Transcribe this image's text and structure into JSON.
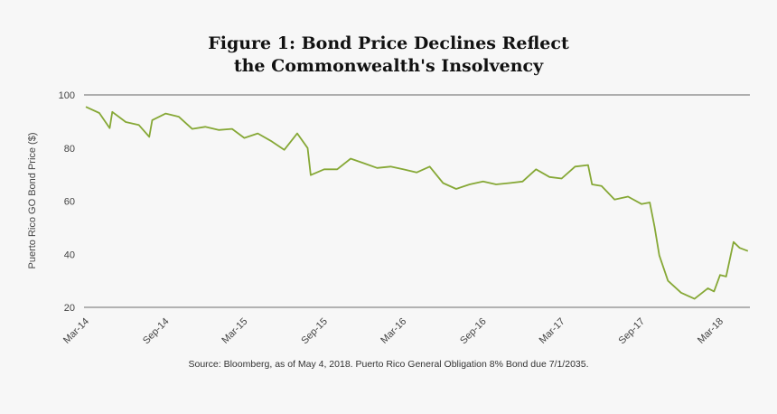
{
  "chart_data": {
    "type": "line",
    "title_lines": [
      "Figure 1: Bond Price Declines Reflect",
      "the Commonwealth's Insolvency"
    ],
    "xlabel": "",
    "ylabel": "Puerto Rico GO Bond Price ($)",
    "ylim": [
      20,
      100
    ],
    "yticks": [
      20,
      40,
      60,
      80,
      100
    ],
    "xticks": [
      {
        "label": "Mar-14",
        "date": "2014-03-01"
      },
      {
        "label": "Sep-14",
        "date": "2014-09-01"
      },
      {
        "label": "Mar-15",
        "date": "2015-03-01"
      },
      {
        "label": "Sep-15",
        "date": "2015-09-01"
      },
      {
        "label": "Mar-16",
        "date": "2016-03-01"
      },
      {
        "label": "Sep-16",
        "date": "2016-09-01"
      },
      {
        "label": "Mar-17",
        "date": "2017-03-01"
      },
      {
        "label": "Sep-17",
        "date": "2017-09-01"
      },
      {
        "label": "Mar-18",
        "date": "2018-03-01"
      }
    ],
    "grid": "top and bottom lines only",
    "line_color": "#86a836",
    "series": [
      {
        "points": [
          [
            "2014-03-01",
            95.5
          ],
          [
            "2014-04-01",
            93.2
          ],
          [
            "2014-04-25",
            87.5
          ],
          [
            "2014-05-01",
            93.6
          ],
          [
            "2014-06-01",
            89.8
          ],
          [
            "2014-07-01",
            88.7
          ],
          [
            "2014-07-25",
            84.2
          ],
          [
            "2014-08-01",
            90.5
          ],
          [
            "2014-09-01",
            93
          ],
          [
            "2014-10-01",
            91.8
          ],
          [
            "2014-11-01",
            87.2
          ],
          [
            "2014-12-01",
            88
          ],
          [
            "2015-01-01",
            86.8
          ],
          [
            "2015-02-01",
            87.2
          ],
          [
            "2015-03-01",
            83.8
          ],
          [
            "2015-04-01",
            85.5
          ],
          [
            "2015-05-01",
            82.7
          ],
          [
            "2015-06-01",
            79.3
          ],
          [
            "2015-07-01",
            85.5
          ],
          [
            "2015-07-25",
            80
          ],
          [
            "2015-08-01",
            69.8
          ],
          [
            "2015-09-01",
            72
          ],
          [
            "2015-10-01",
            72
          ],
          [
            "2015-11-01",
            76
          ],
          [
            "2015-12-01",
            74.3
          ],
          [
            "2016-01-01",
            72.5
          ],
          [
            "2016-02-01",
            73
          ],
          [
            "2016-03-01",
            72
          ],
          [
            "2016-04-01",
            70.8
          ],
          [
            "2016-05-01",
            73
          ],
          [
            "2016-06-01",
            66.8
          ],
          [
            "2016-07-01",
            64.6
          ],
          [
            "2016-08-01",
            66.3
          ],
          [
            "2016-09-01",
            67.4
          ],
          [
            "2016-10-01",
            66.3
          ],
          [
            "2016-11-01",
            66.8
          ],
          [
            "2016-12-01",
            67.4
          ],
          [
            "2017-01-01",
            72
          ],
          [
            "2017-02-01",
            69.1
          ],
          [
            "2017-03-01",
            68.5
          ],
          [
            "2017-04-01",
            73
          ],
          [
            "2017-05-01",
            73.6
          ],
          [
            "2017-05-10",
            66.3
          ],
          [
            "2017-06-01",
            65.7
          ],
          [
            "2017-07-01",
            60.6
          ],
          [
            "2017-08-01",
            61.7
          ],
          [
            "2017-09-01",
            58.9
          ],
          [
            "2017-09-20",
            59.5
          ],
          [
            "2017-10-01",
            50.5
          ],
          [
            "2017-10-12",
            39.6
          ],
          [
            "2017-11-01",
            30
          ],
          [
            "2017-12-01",
            25.5
          ],
          [
            "2018-01-01",
            23.2
          ],
          [
            "2018-02-01",
            27.2
          ],
          [
            "2018-02-15",
            26
          ],
          [
            "2018-03-01",
            32.2
          ],
          [
            "2018-03-15",
            31.6
          ],
          [
            "2018-04-01",
            44.6
          ],
          [
            "2018-04-15",
            42.4
          ],
          [
            "2018-05-04",
            41.2
          ]
        ]
      }
    ],
    "source": "Source: Bloomberg, as of May 4, 2018. Puerto Rico General Obligation 8% Bond due 7/1/2035."
  }
}
